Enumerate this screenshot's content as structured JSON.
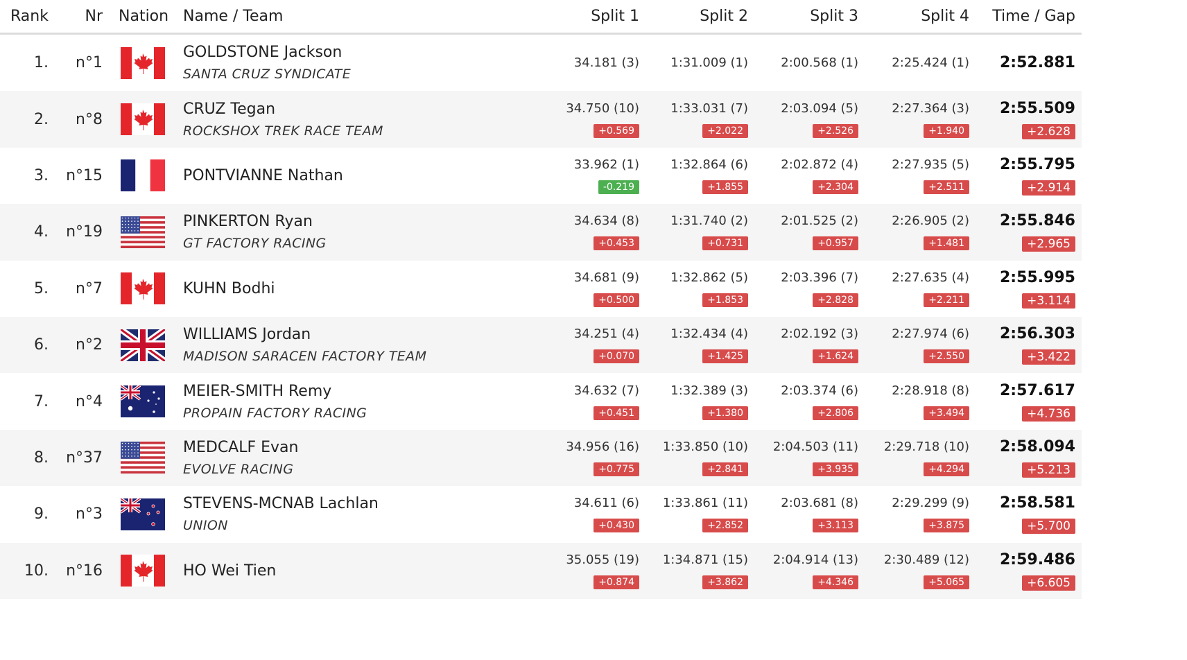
{
  "header": {
    "rank": "Rank",
    "nr": "Nr",
    "nation": "Nation",
    "name_team": "Name / Team",
    "split1": "Split 1",
    "split2": "Split 2",
    "split3": "Split 3",
    "split4": "Split 4",
    "time_gap": "Time / Gap"
  },
  "flag_icons": {
    "CAN": "canada-flag-icon",
    "FRA": "france-flag-icon",
    "USA": "usa-flag-icon",
    "GBR": "great-britain-flag-icon",
    "AUS": "australia-flag-icon",
    "NZL": "new-zealand-flag-icon"
  },
  "colors": {
    "gap_positive": "#d84b4b",
    "gap_negative": "#4caf50"
  },
  "riders": [
    {
      "rank": "1.",
      "nr": "n°1",
      "nation": "CAN",
      "name": "GOLDSTONE Jackson",
      "team": "SANTA CRUZ SYNDICATE",
      "s1": "34.181 (3)",
      "g1": "",
      "s2": "1:31.009 (1)",
      "g2": "",
      "s3": "2:00.568 (1)",
      "g3": "",
      "s4": "2:25.424 (1)",
      "g4": "",
      "time": "2:52.881",
      "gap": ""
    },
    {
      "rank": "2.",
      "nr": "n°8",
      "nation": "CAN",
      "name": "CRUZ Tegan",
      "team": "ROCKSHOX TREK RACE TEAM",
      "s1": "34.750 (10)",
      "g1": "+0.569",
      "s2": "1:33.031 (7)",
      "g2": "+2.022",
      "s3": "2:03.094 (5)",
      "g3": "+2.526",
      "s4": "2:27.364 (3)",
      "g4": "+1.940",
      "time": "2:55.509",
      "gap": "+2.628"
    },
    {
      "rank": "3.",
      "nr": "n°15",
      "nation": "FRA",
      "name": "PONTVIANNE Nathan",
      "team": "",
      "s1": "33.962 (1)",
      "g1": "-0.219",
      "s2": "1:32.864 (6)",
      "g2": "+1.855",
      "s3": "2:02.872 (4)",
      "g3": "+2.304",
      "s4": "2:27.935 (5)",
      "g4": "+2.511",
      "time": "2:55.795",
      "gap": "+2.914"
    },
    {
      "rank": "4.",
      "nr": "n°19",
      "nation": "USA",
      "name": "PINKERTON Ryan",
      "team": "GT FACTORY RACING",
      "s1": "34.634 (8)",
      "g1": "+0.453",
      "s2": "1:31.740 (2)",
      "g2": "+0.731",
      "s3": "2:01.525 (2)",
      "g3": "+0.957",
      "s4": "2:26.905 (2)",
      "g4": "+1.481",
      "time": "2:55.846",
      "gap": "+2.965"
    },
    {
      "rank": "5.",
      "nr": "n°7",
      "nation": "CAN",
      "name": "KUHN Bodhi",
      "team": "",
      "s1": "34.681 (9)",
      "g1": "+0.500",
      "s2": "1:32.862 (5)",
      "g2": "+1.853",
      "s3": "2:03.396 (7)",
      "g3": "+2.828",
      "s4": "2:27.635 (4)",
      "g4": "+2.211",
      "time": "2:55.995",
      "gap": "+3.114"
    },
    {
      "rank": "6.",
      "nr": "n°2",
      "nation": "GBR",
      "name": "WILLIAMS Jordan",
      "team": "MADISON SARACEN FACTORY TEAM",
      "s1": "34.251 (4)",
      "g1": "+0.070",
      "s2": "1:32.434 (4)",
      "g2": "+1.425",
      "s3": "2:02.192 (3)",
      "g3": "+1.624",
      "s4": "2:27.974 (6)",
      "g4": "+2.550",
      "time": "2:56.303",
      "gap": "+3.422"
    },
    {
      "rank": "7.",
      "nr": "n°4",
      "nation": "AUS",
      "name": "MEIER-SMITH Remy",
      "team": "PROPAIN FACTORY RACING",
      "s1": "34.632 (7)",
      "g1": "+0.451",
      "s2": "1:32.389 (3)",
      "g2": "+1.380",
      "s3": "2:03.374 (6)",
      "g3": "+2.806",
      "s4": "2:28.918 (8)",
      "g4": "+3.494",
      "time": "2:57.617",
      "gap": "+4.736"
    },
    {
      "rank": "8.",
      "nr": "n°37",
      "nation": "USA",
      "name": "MEDCALF Evan",
      "team": "EVOLVE RACING",
      "s1": "34.956 (16)",
      "g1": "+0.775",
      "s2": "1:33.850 (10)",
      "g2": "+2.841",
      "s3": "2:04.503 (11)",
      "g3": "+3.935",
      "s4": "2:29.718 (10)",
      "g4": "+4.294",
      "time": "2:58.094",
      "gap": "+5.213"
    },
    {
      "rank": "9.",
      "nr": "n°3",
      "nation": "NZL",
      "name": "STEVENS-MCNAB Lachlan",
      "team": "UNION",
      "s1": "34.611 (6)",
      "g1": "+0.430",
      "s2": "1:33.861 (11)",
      "g2": "+2.852",
      "s3": "2:03.681 (8)",
      "g3": "+3.113",
      "s4": "2:29.299 (9)",
      "g4": "+3.875",
      "time": "2:58.581",
      "gap": "+5.700"
    },
    {
      "rank": "10.",
      "nr": "n°16",
      "nation": "CAN",
      "name": "HO Wei Tien",
      "team": "",
      "s1": "35.055 (19)",
      "g1": "+0.874",
      "s2": "1:34.871 (15)",
      "g2": "+3.862",
      "s3": "2:04.914 (13)",
      "g3": "+4.346",
      "s4": "2:30.489 (12)",
      "g4": "+5.065",
      "time": "2:59.486",
      "gap": "+6.605"
    }
  ]
}
